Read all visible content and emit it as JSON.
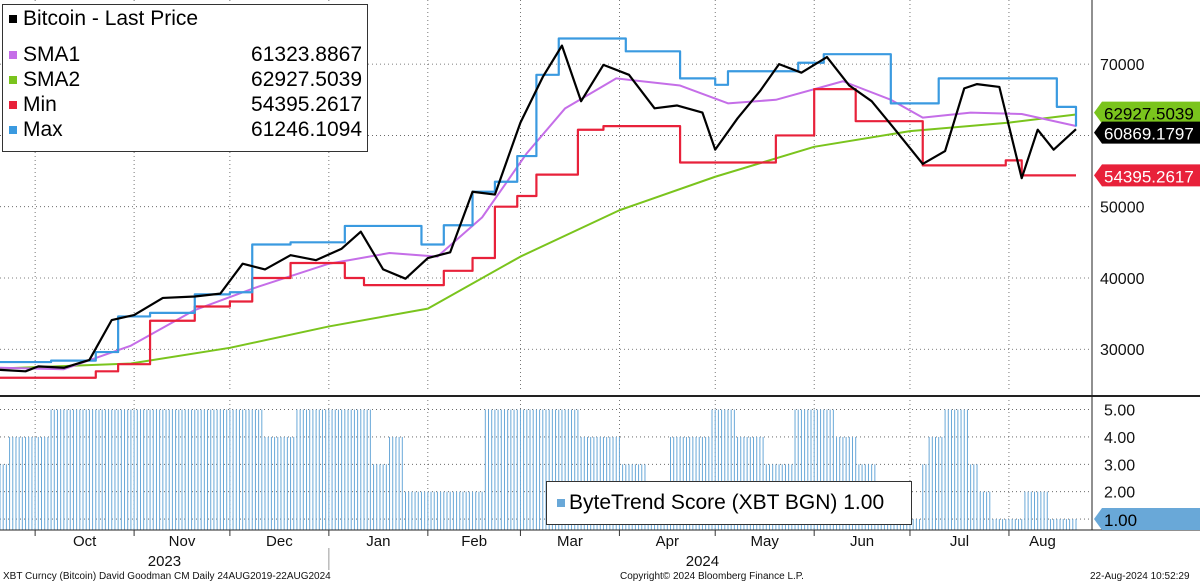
{
  "legend": [
    {
      "name": "Bitcoin - Last Price",
      "value": "",
      "color": "#000000"
    },
    {
      "name": "SMA1",
      "value": "61323.8867",
      "color": "#c56ee8"
    },
    {
      "name": "SMA2",
      "value": "62927.5039",
      "color": "#7ac41d"
    },
    {
      "name": "Min",
      "value": "54395.2617",
      "color": "#e8213a"
    },
    {
      "name": "Max",
      "value": "61246.1094",
      "color": "#3a9ae0"
    }
  ],
  "score_legend": "ByteTrend Score (XBT BGN) 1.00",
  "footer": {
    "left": "XBT Curncy (Bitcoin) David Goodman CM  Daily 24AUG2019-22AUG2024",
    "center": "Copyright© 2024 Bloomberg Finance L.P.",
    "right": "22-Aug-2024 10:52:29"
  },
  "chart_data": [
    {
      "type": "line",
      "title": "Bitcoin - Last Price",
      "x_axis": {
        "months": [
          "Oct",
          "Nov",
          "Dec",
          "Jan",
          "Feb",
          "Mar",
          "Apr",
          "May",
          "Jun",
          "Jul",
          "Aug"
        ],
        "years": [
          "2023",
          "2024"
        ],
        "range": [
          "2023-09-20",
          "2024-08-22"
        ]
      },
      "y_axis": {
        "ticks": [
          30000,
          40000,
          50000,
          60000,
          70000
        ],
        "range": [
          24000,
          79000
        ],
        "position": "right"
      },
      "grid": true,
      "legend_placement": "top-left",
      "series": [
        {
          "name": "Bitcoin - Last Price",
          "color": "#000000",
          "x": [
            "2023-09-20",
            "2023-09-28",
            "2023-10-02",
            "2023-10-10",
            "2023-10-18",
            "2023-10-25",
            "2023-11-01",
            "2023-11-10",
            "2023-11-20",
            "2023-11-28",
            "2023-12-05",
            "2023-12-12",
            "2023-12-20",
            "2023-12-28",
            "2024-01-05",
            "2024-01-11",
            "2024-01-18",
            "2024-01-25",
            "2024-02-01",
            "2024-02-08",
            "2024-02-15",
            "2024-02-22",
            "2024-03-01",
            "2024-03-08",
            "2024-03-14",
            "2024-03-20",
            "2024-03-27",
            "2024-04-04",
            "2024-04-12",
            "2024-04-19",
            "2024-04-27",
            "2024-05-01",
            "2024-05-08",
            "2024-05-15",
            "2024-05-21",
            "2024-05-28",
            "2024-06-05",
            "2024-06-12",
            "2024-06-19",
            "2024-06-26",
            "2024-07-05",
            "2024-07-12",
            "2024-07-18",
            "2024-07-22",
            "2024-07-29",
            "2024-08-05",
            "2024-08-10",
            "2024-08-15",
            "2024-08-22"
          ],
          "y": [
            27100,
            26900,
            27600,
            27400,
            28500,
            34100,
            34800,
            37200,
            37400,
            37800,
            42000,
            41200,
            43200,
            42500,
            44100,
            46500,
            41200,
            39900,
            42800,
            43600,
            52100,
            51700,
            61800,
            68200,
            72600,
            64800,
            69900,
            68500,
            63800,
            64200,
            63200,
            58000,
            62400,
            66200,
            70000,
            68800,
            71000,
            67000,
            64800,
            61000,
            56000,
            57800,
            66600,
            67200,
            66800,
            54000,
            60800,
            58000,
            60870
          ]
        },
        {
          "name": "SMA1",
          "color": "#c56ee8",
          "x": [
            "2023-09-20",
            "2023-10-10",
            "2023-10-31",
            "2023-11-20",
            "2023-12-10",
            "2024-01-01",
            "2024-01-20",
            "2024-02-04",
            "2024-02-18",
            "2024-03-03",
            "2024-03-15",
            "2024-03-31",
            "2024-04-20",
            "2024-05-05",
            "2024-05-20",
            "2024-06-10",
            "2024-06-25",
            "2024-07-05",
            "2024-07-20",
            "2024-08-05",
            "2024-08-22"
          ],
          "y": [
            27400,
            27200,
            30500,
            35500,
            38800,
            42000,
            43500,
            43000,
            48500,
            57500,
            63800,
            68000,
            67000,
            64500,
            65000,
            67600,
            65000,
            62500,
            63200,
            63000,
            61324
          ]
        },
        {
          "name": "SMA2",
          "color": "#7ac41d",
          "x": [
            "2023-09-20",
            "2023-10-31",
            "2023-12-01",
            "2024-01-01",
            "2024-02-01",
            "2024-03-01",
            "2024-04-01",
            "2024-05-01",
            "2024-06-01",
            "2024-07-01",
            "2024-08-01",
            "2024-08-22"
          ],
          "y": [
            27300,
            28000,
            30200,
            33200,
            35700,
            43000,
            49500,
            54200,
            58400,
            60600,
            61800,
            62928
          ]
        },
        {
          "name": "Min",
          "color": "#e8213a",
          "x": [
            "2023-09-20",
            "2023-10-06",
            "2023-10-20",
            "2023-10-27",
            "2023-11-06",
            "2023-11-20",
            "2023-12-01",
            "2023-12-08",
            "2023-12-20",
            "2024-01-06",
            "2024-01-12",
            "2024-01-30",
            "2024-02-06",
            "2024-02-15",
            "2024-02-22",
            "2024-02-29",
            "2024-03-06",
            "2024-03-19",
            "2024-03-27",
            "2024-04-13",
            "2024-04-20",
            "2024-05-01",
            "2024-05-15",
            "2024-05-20",
            "2024-06-01",
            "2024-06-14",
            "2024-06-24",
            "2024-07-05",
            "2024-07-10",
            "2024-07-31",
            "2024-08-05",
            "2024-08-22"
          ],
          "y": [
            26000,
            26000,
            26900,
            27900,
            34000,
            36000,
            36700,
            40000,
            42100,
            40000,
            39000,
            39000,
            41000,
            42800,
            50000,
            51500,
            54500,
            60800,
            61300,
            61300,
            56200,
            56200,
            56200,
            60000,
            66500,
            62000,
            62000,
            55800,
            55800,
            56500,
            54395,
            54395
          ]
        },
        {
          "name": "Max",
          "color": "#3a9ae0",
          "x": [
            "2023-09-20",
            "2023-10-06",
            "2023-10-20",
            "2023-10-27",
            "2023-11-06",
            "2023-11-20",
            "2023-12-01",
            "2023-12-08",
            "2023-12-20",
            "2024-01-06",
            "2024-01-12",
            "2024-01-30",
            "2024-02-06",
            "2024-02-15",
            "2024-02-22",
            "2024-02-29",
            "2024-03-06",
            "2024-03-13",
            "2024-04-03",
            "2024-04-08",
            "2024-04-20",
            "2024-05-01",
            "2024-05-05",
            "2024-05-20",
            "2024-05-27",
            "2024-06-04",
            "2024-06-25",
            "2024-07-06",
            "2024-07-10",
            "2024-08-10",
            "2024-08-16",
            "2024-08-22"
          ],
          "y": [
            28200,
            28400,
            29600,
            34600,
            35100,
            37700,
            38000,
            44700,
            45000,
            47300,
            47300,
            44700,
            47400,
            52100,
            53500,
            57100,
            68500,
            73600,
            71800,
            71800,
            68000,
            67100,
            69000,
            69000,
            70200,
            71400,
            64500,
            64500,
            68000,
            68000,
            64000,
            61246
          ]
        }
      ],
      "right_labels": [
        {
          "value": "62927.5039",
          "color": "#7ac41d"
        },
        {
          "value": "60869.1797",
          "color": "#000000"
        },
        {
          "value": "54395.2617",
          "color": "#e8213a"
        }
      ]
    },
    {
      "type": "bar",
      "title": "ByteTrend Score (XBT BGN) 1.00",
      "y_axis": {
        "ticks": [
          1.0,
          2.0,
          3.0,
          4.0,
          5.0
        ],
        "tick_labels": [
          "1.00",
          "2.00",
          "3.00",
          "4.00",
          "5.00"
        ],
        "range": [
          0.6,
          5.35
        ]
      },
      "series": [
        {
          "name": "ByteTrend Score (XBT BGN) 1.00",
          "color": "#69a8d8",
          "x_start": [
            "2023-09-20",
            "2023-09-23",
            "2023-10-06",
            "2023-12-12",
            "2023-12-22",
            "2024-01-15",
            "2024-01-20",
            "2024-01-25",
            "2024-02-19",
            "2024-03-20",
            "2024-04-02",
            "2024-04-10",
            "2024-04-17",
            "2024-04-30",
            "2024-05-08",
            "2024-05-17",
            "2024-05-26",
            "2024-06-08",
            "2024-06-15",
            "2024-06-21",
            "2024-07-05",
            "2024-07-07",
            "2024-07-12",
            "2024-07-20",
            "2024-07-23",
            "2024-07-27",
            "2024-08-06",
            "2024-08-14"
          ],
          "x_end": [
            "2023-09-23",
            "2023-10-06",
            "2023-12-12",
            "2023-12-22",
            "2024-01-15",
            "2024-01-20",
            "2024-01-25",
            "2024-02-19",
            "2024-03-20",
            "2024-04-02",
            "2024-04-10",
            "2024-04-17",
            "2024-04-30",
            "2024-05-08",
            "2024-05-17",
            "2024-05-26",
            "2024-06-08",
            "2024-06-15",
            "2024-06-21",
            "2024-07-05",
            "2024-07-07",
            "2024-07-12",
            "2024-07-20",
            "2024-07-23",
            "2024-07-27",
            "2024-08-06",
            "2024-08-14",
            "2024-08-23"
          ],
          "values": [
            3,
            4,
            5,
            4,
            5,
            3,
            4,
            2,
            5,
            4,
            3,
            2,
            4,
            5,
            4,
            3,
            5,
            4,
            3,
            1,
            3,
            4,
            5,
            3,
            2,
            1,
            2,
            1
          ]
        }
      ],
      "last_label": "1.00"
    }
  ]
}
